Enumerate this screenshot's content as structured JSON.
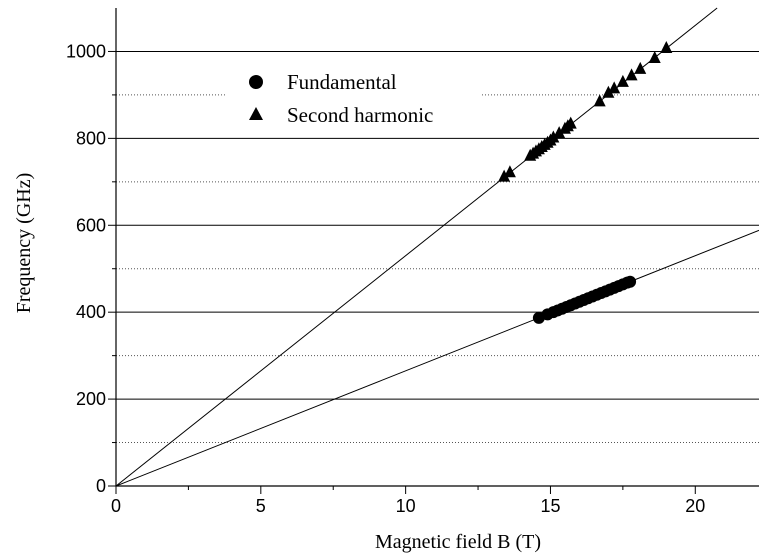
{
  "chart_data": {
    "type": "scatter",
    "xlabel": "Magnetic field B (T)",
    "ylabel": "Frequency (GHz)",
    "xlim": [
      0,
      22.2
    ],
    "ylim": [
      0,
      1100
    ],
    "xticks": [
      0,
      5,
      10,
      15,
      20
    ],
    "yticks": [
      0,
      200,
      400,
      600,
      800,
      1000
    ],
    "grid": "horizontal lines at labeled ticks, dotted lines at intermediate ticks",
    "legend": "upper-left inside plot",
    "series": [
      {
        "name": "Fundamental",
        "marker": "circle",
        "fit_slope": 26.5,
        "x": [
          14.6,
          14.9,
          15.1,
          15.25,
          15.4,
          15.55,
          15.7,
          15.85,
          16.0,
          16.15,
          16.3,
          16.45,
          16.6,
          16.75,
          16.9,
          17.05,
          17.2,
          17.35,
          17.5,
          17.65,
          17.75
        ],
        "y": [
          387,
          395,
          400,
          404,
          408,
          412,
          416,
          420,
          424,
          428,
          432,
          436,
          440,
          444,
          448,
          452,
          456,
          460,
          464,
          468,
          470
        ]
      },
      {
        "name": "Second harmonic",
        "marker": "triangle",
        "fit_slope": 53.0,
        "x": [
          13.4,
          13.6,
          14.3,
          14.4,
          14.5,
          14.6,
          14.7,
          14.8,
          14.9,
          15.0,
          15.1,
          15.3,
          15.5,
          15.6,
          15.7,
          16.7,
          17.0,
          17.2,
          17.5,
          17.8,
          18.1,
          18.6,
          19.0
        ],
        "y": [
          712,
          722,
          760,
          765,
          770,
          775,
          780,
          785,
          790,
          795,
          802,
          812,
          822,
          828,
          834,
          885,
          905,
          915,
          930,
          945,
          960,
          985,
          1008
        ]
      }
    ]
  }
}
